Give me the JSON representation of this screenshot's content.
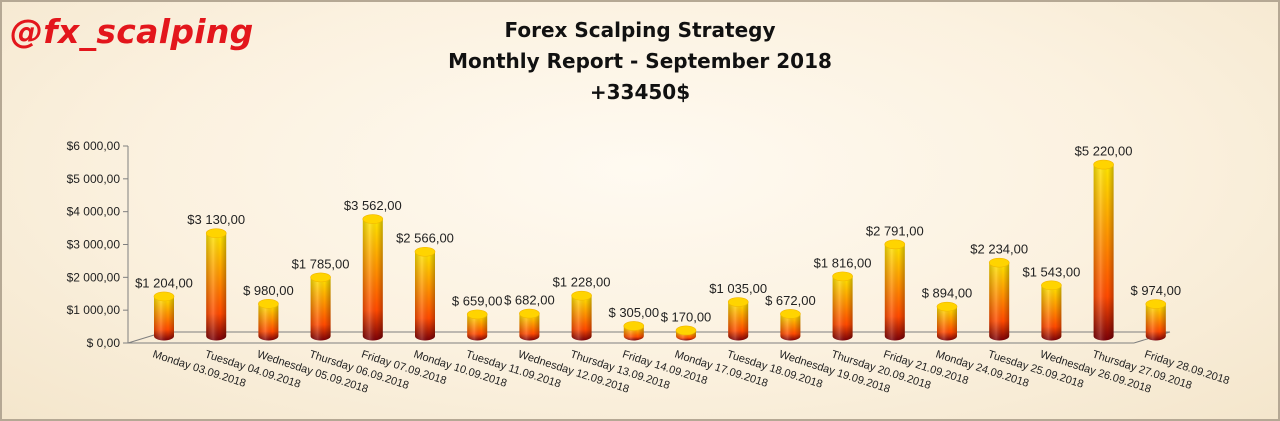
{
  "watermark": "@fx_scalping",
  "chart_data": {
    "type": "bar",
    "title": [
      "Forex Scalping Strategy",
      "Monthly Report - September 2018",
      "+33450$"
    ],
    "xlabel": "",
    "ylabel": "",
    "ylim": [
      0,
      6000
    ],
    "yticks": [
      0,
      1000,
      2000,
      3000,
      4000,
      5000,
      6000
    ],
    "ytick_labels": [
      "$ 0,00",
      "$1 000,00",
      "$2 000,00",
      "$3 000,00",
      "$4 000,00",
      "$5 000,00",
      "$6 000,00"
    ],
    "grid": false,
    "legend": "none",
    "categories": [
      "Monday 03.09.2018",
      "Tuesday 04.09.2018",
      "Wednesday 05.09.2018",
      "Thursday 06.09.2018",
      "Friday 07.09.2018",
      "Monday 10.09.2018",
      "Tuesday 11.09.2018",
      "Wednesday 12.09.2018",
      "Thursday 13.09.2018",
      "Friday 14.09.2018",
      "Monday 17.09.2018",
      "Tuesday 18.09.2018",
      "Wednesday 19.09.2018",
      "Thursday 20.09.2018",
      "Friday 21.09.2018",
      "Monday 24.09.2018",
      "Tuesday 25.09.2018",
      "Wednesday 26.09.2018",
      "Thursday 27.09.2018",
      "Friday 28.09.2018"
    ],
    "values": [
      1204,
      3130,
      980,
      1785,
      3562,
      2566,
      659,
      682,
      1228,
      305,
      170,
      1035,
      672,
      1816,
      2791,
      894,
      2234,
      1543,
      5220,
      974
    ],
    "data_labels": [
      "$1 204,00",
      "$3 130,00",
      "$ 980,00",
      "$1 785,00",
      "$3 562,00",
      "$2 566,00",
      "$ 659,00",
      "$ 682,00",
      "$1 228,00",
      "$ 305,00",
      "$ 170,00",
      "$1 035,00",
      "$ 672,00",
      "$1 816,00",
      "$2 791,00",
      "$ 894,00",
      "$2 234,00",
      "$1 543,00",
      "$5 220,00",
      "$ 974,00"
    ],
    "colors": {
      "cylinder_top": "#ffe600",
      "cylinder_mid": "#ff4a00",
      "cylinder_bottom": "#7a0008",
      "axis": "#7f7f7f"
    }
  }
}
